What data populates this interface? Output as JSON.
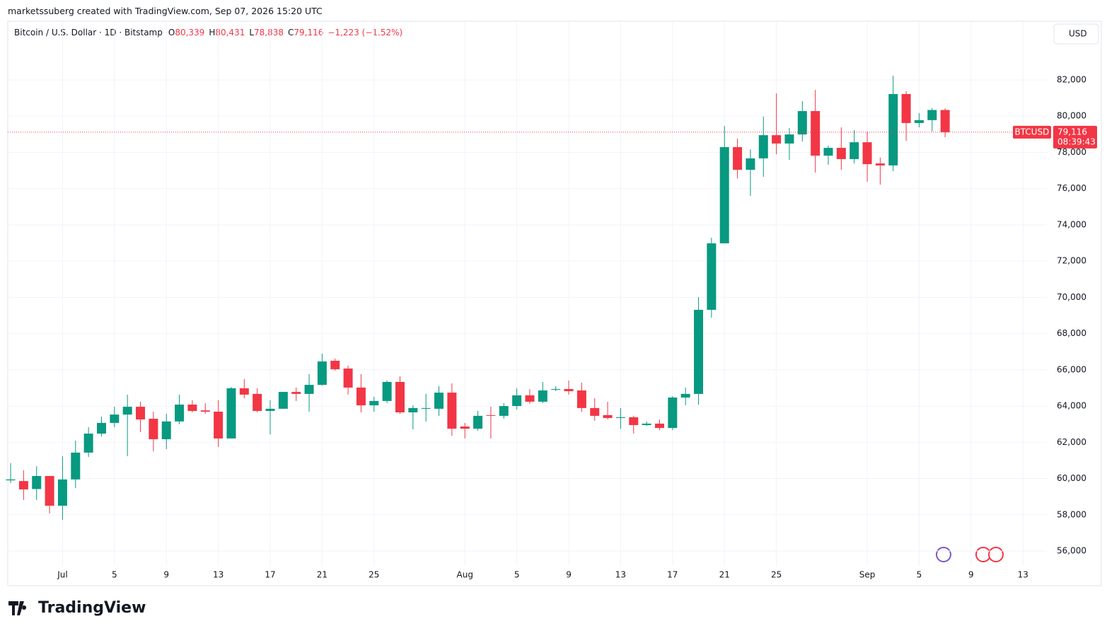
{
  "credit": "marketssuberg created with TradingView.com, Sep 07, 2026 15:20 UTC",
  "brand": "TradingView",
  "chart_data": {
    "type": "candlestick",
    "title": "Bitcoin / U.S. Dollar · 1D · Bitstamp",
    "ohlc_labels": [
      {
        "key": "O",
        "text": "80,339"
      },
      {
        "key": "H",
        "text": "80,431"
      },
      {
        "key": "L",
        "text": "78,838"
      },
      {
        "key": "C",
        "text": "79,116"
      }
    ],
    "change_label": "−1,223 (−1.52%)",
    "currency": "USD",
    "symbol": "BTCUSD",
    "last_label": "79,116",
    "countdown": "08:39:43",
    "up_color": "#089981",
    "down_color": "#f23645",
    "grid": true,
    "xlim": [
      -0.22,
      79.84
    ],
    "xticks": [
      {
        "value": 4,
        "label": "Jul"
      },
      {
        "value": 8,
        "label": "5"
      },
      {
        "value": 12,
        "label": "9"
      },
      {
        "value": 16,
        "label": "13"
      },
      {
        "value": 20,
        "label": "17"
      },
      {
        "value": 24,
        "label": "21"
      },
      {
        "value": 28,
        "label": "25"
      },
      {
        "value": 35,
        "label": "Aug"
      },
      {
        "value": 39,
        "label": "5"
      },
      {
        "value": 43,
        "label": "9"
      },
      {
        "value": 47,
        "label": "13"
      },
      {
        "value": 51,
        "label": "17"
      },
      {
        "value": 55,
        "label": "21"
      },
      {
        "value": 59,
        "label": "25"
      },
      {
        "value": 66,
        "label": "Sep"
      },
      {
        "value": 70,
        "label": "5"
      },
      {
        "value": 74,
        "label": "9"
      },
      {
        "value": 78,
        "label": "13"
      }
    ],
    "ylim": [
      55180,
      83990
    ],
    "yticks": [
      {
        "value": 56000,
        "label": "56,000"
      },
      {
        "value": 58000,
        "label": "58,000"
      },
      {
        "value": 60000,
        "label": "60,000"
      },
      {
        "value": 62000,
        "label": "62,000"
      },
      {
        "value": 64000,
        "label": "64,000"
      },
      {
        "value": 66000,
        "label": "66,000"
      },
      {
        "value": 68000,
        "label": "68,000"
      },
      {
        "value": 70000,
        "label": "70,000"
      },
      {
        "value": 72000,
        "label": "72,000"
      },
      {
        "value": 74000,
        "label": "74,000"
      },
      {
        "value": 76000,
        "label": "76,000"
      },
      {
        "value": 78000,
        "label": "78,000"
      },
      {
        "value": 80000,
        "label": "80,000"
      },
      {
        "value": 82000,
        "label": "82,000"
      }
    ],
    "open": [
      59900,
      59860,
      59420,
      60140,
      58500,
      59950,
      61430,
      62480,
      63070,
      63530,
      63960,
      63300,
      62170,
      63150,
      64080,
      63760,
      63690,
      62210,
      64980,
      64670,
      63730,
      63850,
      64780,
      64670,
      65170,
      66500,
      66070,
      65020,
      64040,
      64280,
      65330,
      63650,
      63850,
      63850,
      64740,
      62870,
      62750,
      63500,
      63460,
      64000,
      64590,
      64240,
      64900,
      64940,
      64860,
      63890,
      63500,
      63340,
      63380,
      62950,
      63030,
      62790,
      64470,
      64670,
      69310,
      72980,
      78290,
      77040,
      77670,
      78950,
      78490,
      78990,
      80280,
      77820,
      78250,
      77630,
      78560,
      77390,
      77280,
      81220,
      79620,
      79780,
      80339
    ],
    "high": [
      60850,
      60450,
      60680,
      60140,
      61230,
      62090,
      62830,
      63420,
      63960,
      64630,
      64240,
      63690,
      63570,
      64630,
      64320,
      64160,
      64320,
      65060,
      65490,
      64980,
      64320,
      64780,
      65020,
      65760,
      66890,
      66620,
      66230,
      65760,
      64510,
      65410,
      65640,
      64040,
      64670,
      65100,
      65250,
      63070,
      63730,
      63960,
      64160,
      64980,
      64940,
      65330,
      65100,
      65410,
      65290,
      64430,
      64240,
      63890,
      63460,
      63150,
      63260,
      64550,
      65020,
      70010,
      73290,
      79460,
      78760,
      78170,
      79970,
      81260,
      79340,
      80830,
      81450,
      78370,
      79380,
      79230,
      79150,
      77710,
      82230,
      81380,
      80170,
      80440,
      80431
    ],
    "low": [
      59750,
      58810,
      58810,
      58070,
      57720,
      59470,
      61190,
      62320,
      62830,
      61230,
      62560,
      61500,
      61620,
      62990,
      63650,
      63570,
      61740,
      62210,
      64430,
      63650,
      62440,
      63850,
      64280,
      63690,
      65130,
      65950,
      64630,
      63650,
      63690,
      64160,
      63570,
      62710,
      63150,
      63460,
      62360,
      62210,
      62640,
      62210,
      63300,
      63810,
      64120,
      64160,
      64820,
      64630,
      63690,
      63190,
      63260,
      62750,
      62480,
      62910,
      62670,
      62670,
      64040,
      64080,
      68880,
      72980,
      76570,
      75600,
      76650,
      77900,
      77590,
      78600,
      76890,
      77320,
      77040,
      77390,
      76380,
      76220,
      76960,
      78640,
      79380,
      79150,
      78838
    ],
    "close": [
      59950,
      59400,
      60140,
      58500,
      59950,
      61430,
      62480,
      63070,
      63530,
      63960,
      63260,
      62170,
      63150,
      64080,
      63730,
      63690,
      62210,
      64980,
      64630,
      63730,
      63850,
      64780,
      64670,
      65170,
      66460,
      66030,
      65020,
      64040,
      64280,
      65330,
      63650,
      63890,
      63890,
      64740,
      62750,
      62750,
      63460,
      63460,
      64000,
      64590,
      64240,
      64860,
      64940,
      64820,
      63890,
      63460,
      63340,
      63380,
      62950,
      63030,
      62790,
      64470,
      64670,
      69310,
      72980,
      78290,
      77040,
      77670,
      78950,
      78490,
      78990,
      80280,
      77820,
      78250,
      77630,
      78560,
      77350,
      77280,
      81220,
      79620,
      79780,
      80340,
      79116
    ]
  }
}
